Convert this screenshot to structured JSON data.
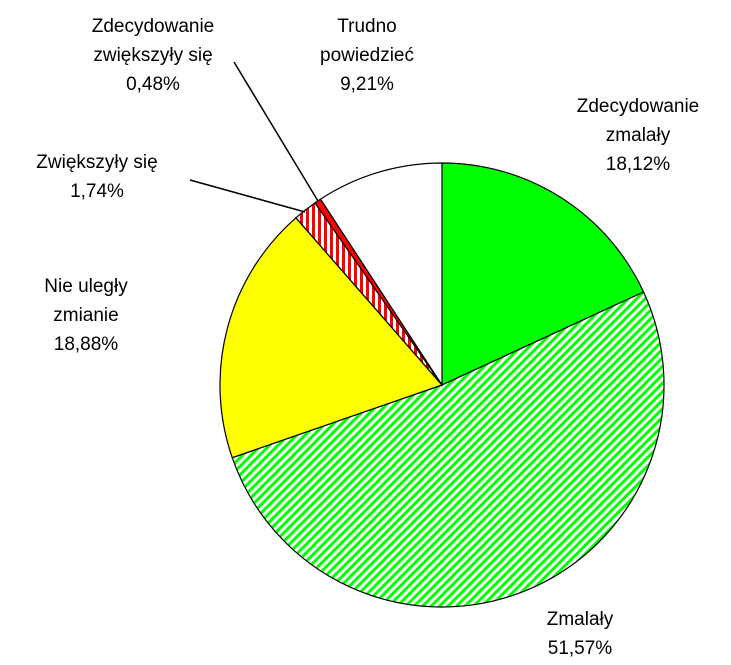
{
  "chart_data": {
    "type": "pie",
    "categories": [
      "Zdecydowanie zmalały",
      "Zmalały",
      "Nie uległy zmianie",
      "Zwiększyły się",
      "Zdecydowanie zwiększyły się",
      "Trudno powiedzieć"
    ],
    "values": [
      18.12,
      51.57,
      18.88,
      1.74,
      0.48,
      9.21
    ],
    "value_labels": [
      "18,12%",
      "51,57%",
      "18,88%",
      "1,74%",
      "0,48%",
      "9,21%"
    ],
    "colors": [
      "#00ff00",
      "#00ff00",
      "#ffff00",
      "#ff0000",
      "#ff0000",
      "#ffffff"
    ],
    "fills": [
      "solid",
      "diagonal",
      "solid",
      "vertical",
      "solid",
      "solid"
    ]
  }
}
